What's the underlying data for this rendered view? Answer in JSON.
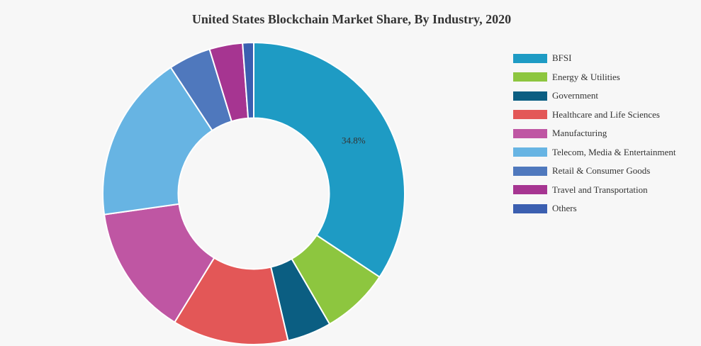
{
  "chart_data": {
    "type": "pie",
    "title": "United States Blockchain Market Share, By Industry, 2020",
    "series": [
      {
        "name": "BFSI",
        "value": 34.8,
        "color": "#1e9bc4",
        "label": "34.8%"
      },
      {
        "name": "Energy & Utilities",
        "value": 7.4,
        "color": "#8dc63f"
      },
      {
        "name": "Government",
        "value": 4.8,
        "color": "#0b5e82"
      },
      {
        "name": "Healthcare and Life Sciences",
        "value": 12.6,
        "color": "#e35757"
      },
      {
        "name": "Manufacturing",
        "value": 14.2,
        "color": "#bf56a3"
      },
      {
        "name": "Telecom, Media & Entertainment",
        "value": 18.2,
        "color": "#67b4e3"
      },
      {
        "name": "Retail & Consumer Goods",
        "value": 4.6,
        "color": "#4f78bd"
      },
      {
        "name": "Travel and Transportation",
        "value": 3.6,
        "color": "#a63591"
      },
      {
        "name": "Others",
        "value": 1.2,
        "color": "#3b5fb0"
      }
    ],
    "inner_radius_ratio": 0.5,
    "legend_position": "right"
  }
}
